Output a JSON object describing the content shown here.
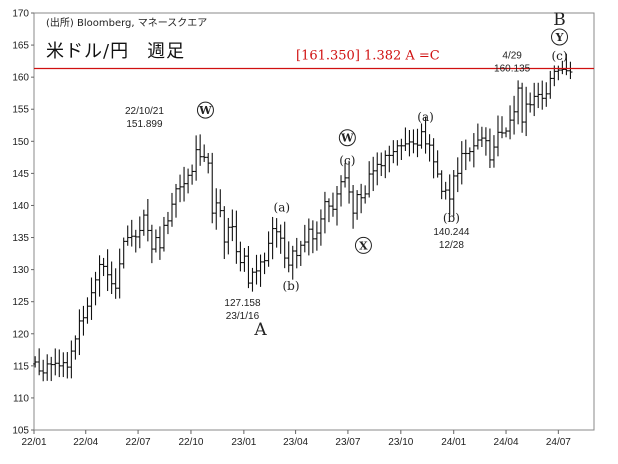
{
  "header": {
    "source": "(出所) Bloomberg, マネースクエア",
    "title_pair": "米ドル/円",
    "title_period": "週足"
  },
  "chart_data": {
    "type": "ohlc",
    "xlim": [
      "2022-01-01",
      "2024-09-01"
    ],
    "ylim": [
      105,
      170
    ],
    "yticks": [
      105,
      110,
      115,
      120,
      125,
      130,
      135,
      140,
      145,
      150,
      155,
      160,
      165,
      170
    ],
    "xticks": [
      {
        "date": "2022-01-01",
        "label": "22/01"
      },
      {
        "date": "2022-04-01",
        "label": "22/04"
      },
      {
        "date": "2022-07-01",
        "label": "22/07"
      },
      {
        "date": "2022-10-01",
        "label": "22/10"
      },
      {
        "date": "2023-01-01",
        "label": "23/01"
      },
      {
        "date": "2023-04-01",
        "label": "23/04"
      },
      {
        "date": "2023-07-01",
        "label": "23/07"
      },
      {
        "date": "2023-10-01",
        "label": "23/10"
      },
      {
        "date": "2024-01-01",
        "label": "24/01"
      },
      {
        "date": "2024-04-01",
        "label": "24/04"
      },
      {
        "date": "2024-07-01",
        "label": "24/07"
      }
    ],
    "closes": [
      [
        "2022-01-03",
        115.6
      ],
      [
        "2022-01-10",
        114.2
      ],
      [
        "2022-01-17",
        113.9
      ],
      [
        "2022-01-24",
        115.3
      ],
      [
        "2022-01-31",
        115.2
      ],
      [
        "2022-02-07",
        115.4
      ],
      [
        "2022-02-14",
        115.0
      ],
      [
        "2022-02-21",
        115.5
      ],
      [
        "2022-02-28",
        114.8
      ],
      [
        "2022-03-07",
        117.3
      ],
      [
        "2022-03-14",
        119.2
      ],
      [
        "2022-03-21",
        122.0
      ],
      [
        "2022-03-28",
        122.5
      ],
      [
        "2022-04-04",
        124.3
      ],
      [
        "2022-04-11",
        126.4
      ],
      [
        "2022-04-18",
        128.4
      ],
      [
        "2022-04-25",
        130.8
      ],
      [
        "2022-05-02",
        130.5
      ],
      [
        "2022-05-09",
        129.2
      ],
      [
        "2022-05-16",
        127.8
      ],
      [
        "2022-05-23",
        127.1
      ],
      [
        "2022-05-30",
        130.9
      ],
      [
        "2022-06-06",
        134.4
      ],
      [
        "2022-06-13",
        135.0
      ],
      [
        "2022-06-20",
        135.2
      ],
      [
        "2022-06-27",
        135.1
      ],
      [
        "2022-07-04",
        136.1
      ],
      [
        "2022-07-11",
        138.5
      ],
      [
        "2022-07-18",
        136.1
      ],
      [
        "2022-07-25",
        133.2
      ],
      [
        "2022-08-01",
        135.0
      ],
      [
        "2022-08-08",
        133.4
      ],
      [
        "2022-08-15",
        136.9
      ],
      [
        "2022-08-22",
        137.6
      ],
      [
        "2022-08-29",
        140.2
      ],
      [
        "2022-09-05",
        142.6
      ],
      [
        "2022-09-12",
        142.9
      ],
      [
        "2022-09-19",
        143.4
      ],
      [
        "2022-09-26",
        144.7
      ],
      [
        "2022-10-03",
        145.3
      ],
      [
        "2022-10-10",
        148.7
      ],
      [
        "2022-10-17",
        147.6
      ],
      [
        "2022-10-24",
        147.5
      ],
      [
        "2022-10-31",
        146.6
      ],
      [
        "2022-11-07",
        138.8
      ],
      [
        "2022-11-14",
        140.4
      ],
      [
        "2022-11-21",
        139.2
      ],
      [
        "2022-11-28",
        134.3
      ],
      [
        "2022-12-05",
        136.6
      ],
      [
        "2022-12-12",
        136.7
      ],
      [
        "2022-12-19",
        132.8
      ],
      [
        "2022-12-26",
        131.1
      ],
      [
        "2023-01-02",
        132.1
      ],
      [
        "2023-01-09",
        127.9
      ],
      [
        "2023-01-16",
        129.6
      ],
      [
        "2023-01-23",
        129.8
      ],
      [
        "2023-01-30",
        131.2
      ],
      [
        "2023-02-06",
        131.4
      ],
      [
        "2023-02-13",
        134.1
      ],
      [
        "2023-02-20",
        136.4
      ],
      [
        "2023-02-27",
        135.9
      ],
      [
        "2023-03-06",
        134.9
      ],
      [
        "2023-03-13",
        131.8
      ],
      [
        "2023-03-20",
        130.7
      ],
      [
        "2023-03-27",
        132.9
      ],
      [
        "2023-04-03",
        132.2
      ],
      [
        "2023-04-10",
        133.8
      ],
      [
        "2023-04-17",
        134.3
      ],
      [
        "2023-04-24",
        136.3
      ],
      [
        "2023-05-01",
        134.8
      ],
      [
        "2023-05-08",
        135.7
      ],
      [
        "2023-05-15",
        137.9
      ],
      [
        "2023-05-22",
        140.6
      ],
      [
        "2023-05-29",
        139.9
      ],
      [
        "2023-06-05",
        139.4
      ],
      [
        "2023-06-12",
        141.8
      ],
      [
        "2023-06-19",
        143.7
      ],
      [
        "2023-06-26",
        144.3
      ],
      [
        "2023-07-03",
        142.1
      ],
      [
        "2023-07-10",
        138.8
      ],
      [
        "2023-07-17",
        141.7
      ],
      [
        "2023-07-24",
        141.2
      ],
      [
        "2023-07-31",
        141.8
      ],
      [
        "2023-08-07",
        144.9
      ],
      [
        "2023-08-14",
        145.4
      ],
      [
        "2023-08-21",
        146.4
      ],
      [
        "2023-08-28",
        146.2
      ],
      [
        "2023-09-04",
        147.8
      ],
      [
        "2023-09-11",
        147.8
      ],
      [
        "2023-09-18",
        148.4
      ],
      [
        "2023-09-25",
        149.3
      ],
      [
        "2023-10-02",
        149.3
      ],
      [
        "2023-10-09",
        149.6
      ],
      [
        "2023-10-16",
        149.9
      ],
      [
        "2023-10-23",
        149.6
      ],
      [
        "2023-10-30",
        149.4
      ],
      [
        "2023-11-06",
        151.5
      ],
      [
        "2023-11-13",
        149.6
      ],
      [
        "2023-11-20",
        149.4
      ],
      [
        "2023-11-27",
        146.8
      ],
      [
        "2023-12-04",
        144.9
      ],
      [
        "2023-12-11",
        142.2
      ],
      [
        "2023-12-18",
        142.4
      ],
      [
        "2023-12-25",
        141.0
      ],
      [
        "2024-01-01",
        144.6
      ],
      [
        "2024-01-08",
        145.0
      ],
      [
        "2024-01-15",
        148.1
      ],
      [
        "2024-01-22",
        148.1
      ],
      [
        "2024-01-29",
        148.4
      ],
      [
        "2024-02-05",
        149.3
      ],
      [
        "2024-02-12",
        150.2
      ],
      [
        "2024-02-19",
        150.5
      ],
      [
        "2024-02-26",
        150.1
      ],
      [
        "2024-03-04",
        147.1
      ],
      [
        "2024-03-11",
        149.1
      ],
      [
        "2024-03-18",
        151.4
      ],
      [
        "2024-03-25",
        151.3
      ],
      [
        "2024-04-01",
        151.6
      ],
      [
        "2024-04-08",
        153.3
      ],
      [
        "2024-04-15",
        154.6
      ],
      [
        "2024-04-22",
        158.3
      ],
      [
        "2024-04-29",
        153.0
      ],
      [
        "2024-05-06",
        155.8
      ],
      [
        "2024-05-13",
        155.7
      ],
      [
        "2024-05-20",
        157.0
      ],
      [
        "2024-05-27",
        157.3
      ],
      [
        "2024-06-03",
        156.7
      ],
      [
        "2024-06-10",
        157.4
      ],
      [
        "2024-06-17",
        159.8
      ],
      [
        "2024-06-24",
        160.9
      ],
      [
        "2024-07-01",
        161.1
      ],
      [
        "2024-07-08",
        161.2
      ],
      [
        "2024-07-15",
        161.0
      ],
      [
        "2024-07-22",
        160.8
      ]
    ],
    "reference_line": {
      "value": 161.35,
      "label": "[161.350] 1.382 A =C",
      "color": "#d01010"
    },
    "annotations": [
      {
        "date": "2022-10-21",
        "value": 151.899,
        "text": "22/10/21",
        "text2": "151.899",
        "pos": "left",
        "wave": "W",
        "wave_style": "circled"
      },
      {
        "date": "2023-01-16",
        "value": 127.158,
        "text": "127.158",
        "text2": "23/1/16",
        "pos": "below",
        "wave": "A",
        "wave_style": "big"
      },
      {
        "date": "2023-03-08",
        "value": 137.8,
        "wave": "(a)",
        "wave_style": "paren",
        "pos": "above"
      },
      {
        "date": "2023-03-24",
        "value": 129.6,
        "wave": "(b)",
        "wave_style": "paren",
        "pos": "below"
      },
      {
        "date": "2023-06-30",
        "value": 145.1,
        "wave": "W",
        "wave_style": "circled",
        "pos": "above",
        "with": "(c)"
      },
      {
        "date": "2023-07-28",
        "value": 137.2,
        "wave": "X",
        "wave_style": "circled",
        "pos": "below"
      },
      {
        "date": "2023-11-13",
        "value": 151.9,
        "wave": "(a)",
        "wave_style": "paren",
        "pos": "above"
      },
      {
        "date": "2023-12-28",
        "value": 140.244,
        "wave": "(b)",
        "wave_style": "paren",
        "text": "140.244",
        "text2": "12/28",
        "pos": "below"
      },
      {
        "date": "2024-04-29",
        "value": 160.135,
        "text": "4/29",
        "text2": "160.135",
        "pos": "above-left"
      },
      {
        "date": "2024-07-03",
        "value": 161.9,
        "wave": "B",
        "wave_style": "big",
        "wave2": "Y",
        "with": "(c)",
        "pos": "top"
      }
    ]
  }
}
